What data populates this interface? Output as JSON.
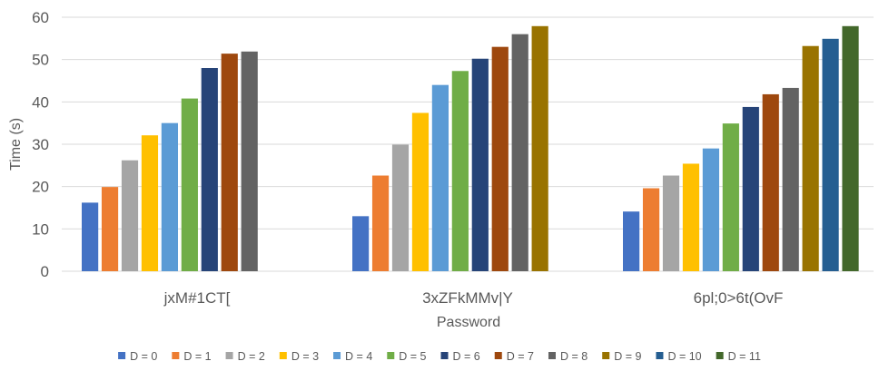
{
  "chart_data": {
    "type": "bar",
    "title": "",
    "xlabel": "Password",
    "ylabel": "Time (s)",
    "ylim": [
      0,
      60
    ],
    "yticks": [
      "0",
      "10",
      "20",
      "30",
      "40",
      "50",
      "60"
    ],
    "grid": true,
    "legend_position": "bottom",
    "categories": [
      "jxM#1CT[",
      "3xZFkMMv|Y",
      "6pl;0>6t(OvF"
    ],
    "series": [
      {
        "name": "D = 0",
        "color": "#4472c4",
        "values": [
          16.2,
          13.0,
          14.1
        ]
      },
      {
        "name": "D = 1",
        "color": "#ed7d31",
        "values": [
          19.9,
          22.6,
          19.6
        ]
      },
      {
        "name": "D = 2",
        "color": "#a5a5a5",
        "values": [
          26.2,
          29.9,
          22.6
        ]
      },
      {
        "name": "D = 3",
        "color": "#ffc000",
        "values": [
          32.1,
          37.4,
          25.4
        ]
      },
      {
        "name": "D = 4",
        "color": "#5b9bd5",
        "values": [
          35.0,
          44.0,
          29.0
        ]
      },
      {
        "name": "D = 5",
        "color": "#70ad47",
        "values": [
          40.8,
          47.3,
          34.9
        ]
      },
      {
        "name": "D = 6",
        "color": "#264478",
        "values": [
          48.0,
          50.2,
          38.8
        ]
      },
      {
        "name": "D = 7",
        "color": "#9e480e",
        "values": [
          51.4,
          53.0,
          41.8
        ]
      },
      {
        "name": "D = 8",
        "color": "#636363",
        "values": [
          51.9,
          56.0,
          43.3
        ]
      },
      {
        "name": "D = 9",
        "color": "#997300",
        "values": [
          null,
          57.9,
          53.2
        ]
      },
      {
        "name": "D = 10",
        "color": "#255e91",
        "values": [
          null,
          null,
          54.9
        ]
      },
      {
        "name": "D = 11",
        "color": "#43682b",
        "values": [
          null,
          null,
          57.9
        ]
      }
    ]
  }
}
